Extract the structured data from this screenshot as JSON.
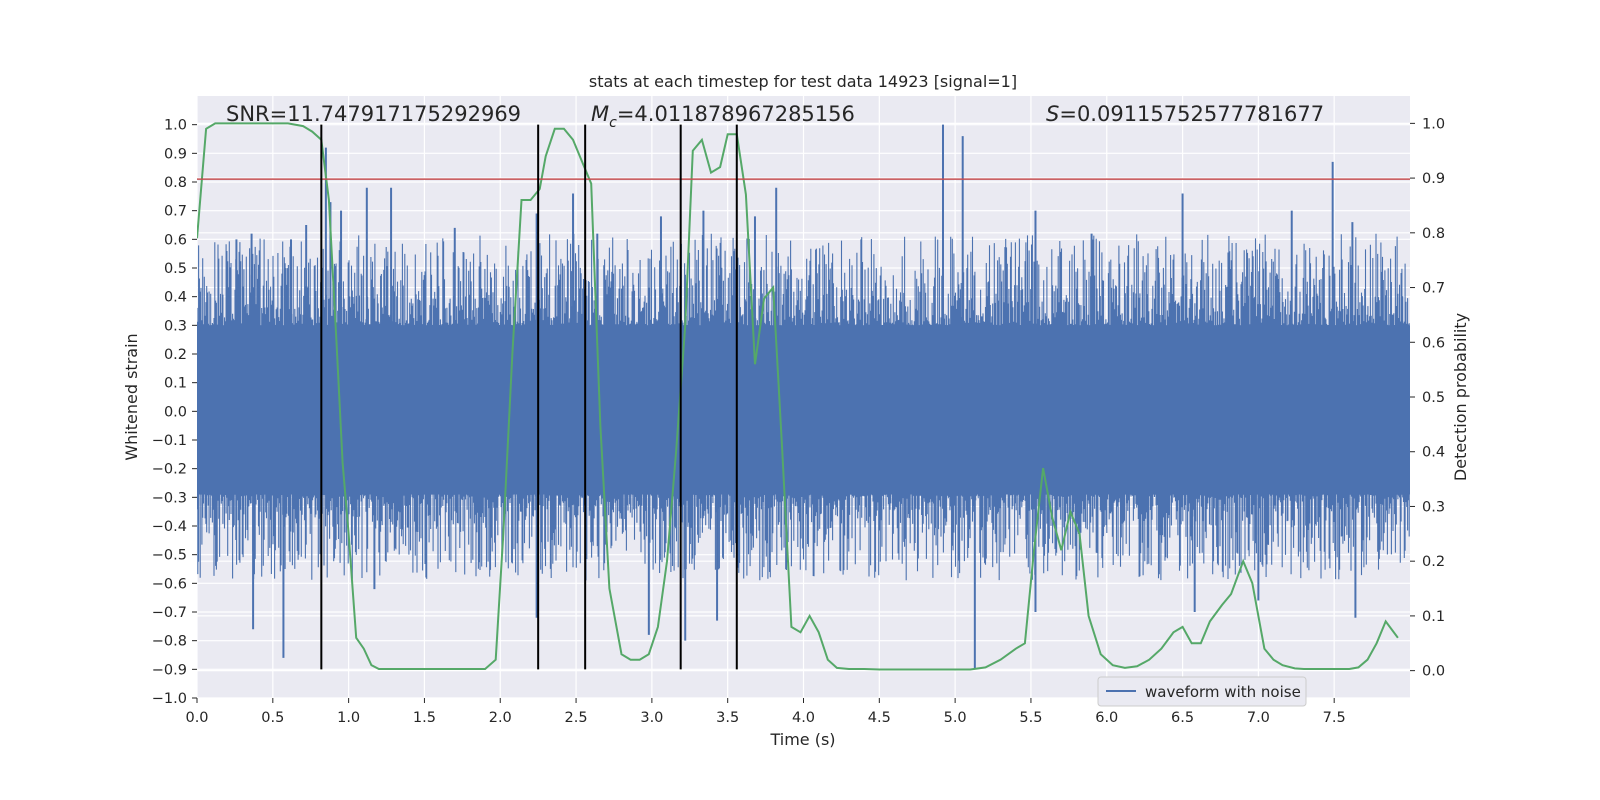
{
  "chart_data": {
    "type": "line",
    "title": "stats at each timestep for test data 14923 [signal=1]",
    "xlabel": "Time (s)",
    "ylabel_left": "Whitened strain",
    "ylabel_right": "Detection probability",
    "xlim": [
      0,
      8
    ],
    "ylim_left": [
      -1.0,
      1.1
    ],
    "ylim_right": [
      -0.05,
      1.05
    ],
    "x_ticks": [
      0.0,
      0.5,
      1.0,
      1.5,
      2.0,
      2.5,
      3.0,
      3.5,
      4.0,
      4.5,
      5.0,
      5.5,
      6.0,
      6.5,
      7.0,
      7.5
    ],
    "x_tick_labels": [
      "0.0",
      "0.5",
      "1.0",
      "1.5",
      "2.0",
      "2.5",
      "3.0",
      "3.5",
      "4.0",
      "4.5",
      "5.0",
      "5.5",
      "6.0",
      "6.5",
      "7.0",
      "7.5"
    ],
    "y_left_ticks": [
      1.0,
      0.9,
      0.8,
      0.7,
      0.6,
      0.5,
      0.4,
      0.3,
      0.2,
      0.1,
      0.0,
      -0.1,
      -0.2,
      -0.3,
      -0.4,
      -0.5,
      -0.6,
      -0.7,
      -0.8,
      -0.9,
      -1.0
    ],
    "y_left_tick_labels": [
      "1.0",
      "0.9",
      "0.8",
      "0.7",
      "0.6",
      "0.5",
      "0.4",
      "0.3",
      "0.2",
      "0.1",
      "0.0",
      "−0.1",
      "−0.2",
      "−0.3",
      "−0.4",
      "−0.5",
      "−0.6",
      "−0.7",
      "−0.8",
      "−0.9",
      "−1.0"
    ],
    "y_right_ticks": [
      1.0,
      0.9,
      0.8,
      0.7,
      0.6,
      0.5,
      0.4,
      0.3,
      0.2,
      0.1,
      0.0
    ],
    "y_right_tick_labels": [
      "1.0",
      "0.9",
      "0.8",
      "0.7",
      "0.6",
      "0.5",
      "0.4",
      "0.3",
      "0.2",
      "0.1",
      "0.0"
    ],
    "annotations": {
      "snr": "SNR=11.747917175292969",
      "mc_symbol": "M",
      "mc_subscript": "c",
      "mc_value": "=4.011878967285156",
      "s_symbol": "S",
      "s_value": "=0.09115752577781677"
    },
    "threshold_line": {
      "y": 0.81,
      "color": "#c44e52"
    },
    "vertical_lines": {
      "x": [
        0.82,
        2.25,
        2.56,
        3.19,
        3.56
      ],
      "y_range": [
        -0.9,
        1.0
      ],
      "color": "#000000"
    },
    "legend": {
      "label": "waveform with noise",
      "position": "lower-right"
    },
    "series": [
      {
        "name": "waveform with noise",
        "axis": "left",
        "color": "#4c72b0",
        "envelope_typical": [
          -0.37,
          0.42
        ],
        "spikes": [
          [
            0.26,
            0.6
          ],
          [
            0.36,
            0.62
          ],
          [
            0.62,
            0.6
          ],
          [
            0.72,
            0.65
          ],
          [
            0.85,
            0.92
          ],
          [
            0.88,
            0.73
          ],
          [
            0.95,
            0.7
          ],
          [
            1.12,
            0.78
          ],
          [
            1.28,
            0.78
          ],
          [
            1.7,
            0.64
          ],
          [
            2.24,
            0.69
          ],
          [
            2.48,
            0.76
          ],
          [
            2.64,
            0.62
          ],
          [
            3.06,
            0.68
          ],
          [
            3.34,
            0.7
          ],
          [
            3.68,
            0.68
          ],
          [
            3.82,
            0.78
          ],
          [
            4.92,
            1.0
          ],
          [
            5.05,
            0.96
          ],
          [
            5.53,
            0.7
          ],
          [
            5.9,
            0.62
          ],
          [
            6.5,
            0.76
          ],
          [
            7.22,
            0.7
          ],
          [
            7.49,
            0.87
          ],
          [
            7.62,
            0.66
          ],
          [
            0.37,
            -0.76
          ],
          [
            0.57,
            -0.86
          ],
          [
            1.17,
            -0.62
          ],
          [
            2.24,
            -0.72
          ],
          [
            2.98,
            -0.78
          ],
          [
            3.22,
            -0.8
          ],
          [
            3.43,
            -0.73
          ],
          [
            5.13,
            -0.9
          ],
          [
            5.53,
            -0.7
          ],
          [
            6.58,
            -0.7
          ],
          [
            7.0,
            -0.66
          ],
          [
            7.64,
            -0.72
          ]
        ]
      },
      {
        "name": "detection probability",
        "axis": "right",
        "color": "#55a868",
        "x": [
          0.0,
          0.06,
          0.12,
          0.2,
          0.3,
          0.4,
          0.5,
          0.6,
          0.7,
          0.76,
          0.82,
          0.87,
          0.92,
          0.96,
          1.0,
          1.05,
          1.1,
          1.15,
          1.2,
          1.3,
          1.4,
          1.5,
          1.6,
          1.7,
          1.8,
          1.9,
          1.97,
          2.02,
          2.08,
          2.14,
          2.2,
          2.26,
          2.3,
          2.36,
          2.42,
          2.48,
          2.54,
          2.6,
          2.66,
          2.72,
          2.8,
          2.86,
          2.92,
          2.98,
          3.04,
          3.1,
          3.16,
          3.22,
          3.27,
          3.33,
          3.39,
          3.45,
          3.5,
          3.56,
          3.62,
          3.68,
          3.74,
          3.8,
          3.86,
          3.92,
          3.98,
          4.04,
          4.1,
          4.16,
          4.22,
          4.3,
          4.4,
          4.5,
          4.6,
          4.7,
          4.8,
          4.9,
          5.0,
          5.1,
          5.2,
          5.3,
          5.4,
          5.46,
          5.52,
          5.58,
          5.64,
          5.7,
          5.76,
          5.82,
          5.88,
          5.96,
          6.04,
          6.12,
          6.2,
          6.28,
          6.36,
          6.44,
          6.5,
          6.56,
          6.62,
          6.68,
          6.76,
          6.82,
          6.9,
          6.96,
          7.04,
          7.1,
          7.16,
          7.24,
          7.3,
          7.4,
          7.5,
          7.6,
          7.66,
          7.72,
          7.78,
          7.84,
          7.92
        ],
        "y": [
          0.79,
          0.99,
          1.0,
          1.0,
          1.0,
          1.0,
          1.0,
          1.0,
          0.995,
          0.985,
          0.97,
          0.86,
          0.6,
          0.38,
          0.25,
          0.06,
          0.04,
          0.01,
          0.003,
          0.003,
          0.003,
          0.003,
          0.003,
          0.003,
          0.003,
          0.003,
          0.02,
          0.25,
          0.58,
          0.86,
          0.86,
          0.88,
          0.94,
          0.99,
          0.99,
          0.97,
          0.93,
          0.89,
          0.45,
          0.15,
          0.03,
          0.02,
          0.02,
          0.03,
          0.08,
          0.2,
          0.4,
          0.63,
          0.95,
          0.97,
          0.91,
          0.92,
          0.98,
          0.98,
          0.87,
          0.56,
          0.68,
          0.7,
          0.4,
          0.08,
          0.07,
          0.1,
          0.07,
          0.02,
          0.005,
          0.003,
          0.003,
          0.002,
          0.002,
          0.002,
          0.002,
          0.002,
          0.002,
          0.002,
          0.006,
          0.02,
          0.04,
          0.05,
          0.22,
          0.37,
          0.28,
          0.22,
          0.29,
          0.25,
          0.1,
          0.03,
          0.01,
          0.005,
          0.008,
          0.02,
          0.04,
          0.07,
          0.08,
          0.05,
          0.05,
          0.09,
          0.12,
          0.14,
          0.2,
          0.16,
          0.04,
          0.02,
          0.01,
          0.004,
          0.003,
          0.003,
          0.003,
          0.003,
          0.006,
          0.02,
          0.05,
          0.09,
          0.06
        ]
      }
    ]
  }
}
